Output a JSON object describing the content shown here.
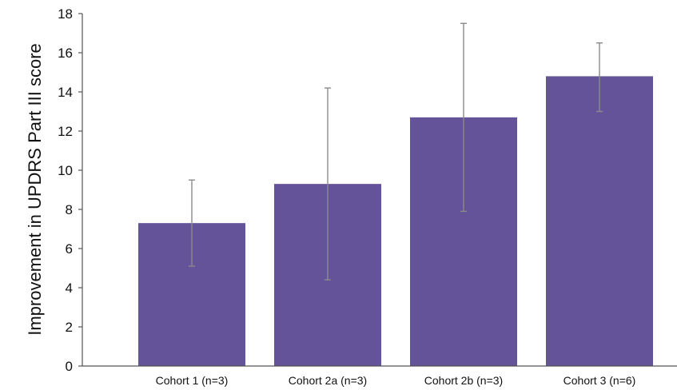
{
  "chart_data": {
    "type": "bar",
    "title": "",
    "xlabel": "",
    "ylabel": "Improvement in UPDRS Part III score",
    "categories": [
      "Cohort 1 (n=3)",
      "Cohort 2a (n=3)",
      "Cohort 2b (n=3)",
      "Cohort 3 (n=6)"
    ],
    "values": [
      7.3,
      9.3,
      12.7,
      14.8
    ],
    "error_low": [
      5.1,
      4.4,
      7.9,
      13.0
    ],
    "error_high": [
      9.5,
      14.2,
      17.5,
      16.5
    ],
    "ylim": [
      0,
      18
    ],
    "yticks": [
      0,
      2,
      4,
      6,
      8,
      10,
      12,
      14,
      16,
      18
    ],
    "grid": false,
    "legend": "none",
    "colors": {
      "bar": "#65539a",
      "error_bar": "#8a8a8a",
      "axis": "#555555"
    }
  }
}
